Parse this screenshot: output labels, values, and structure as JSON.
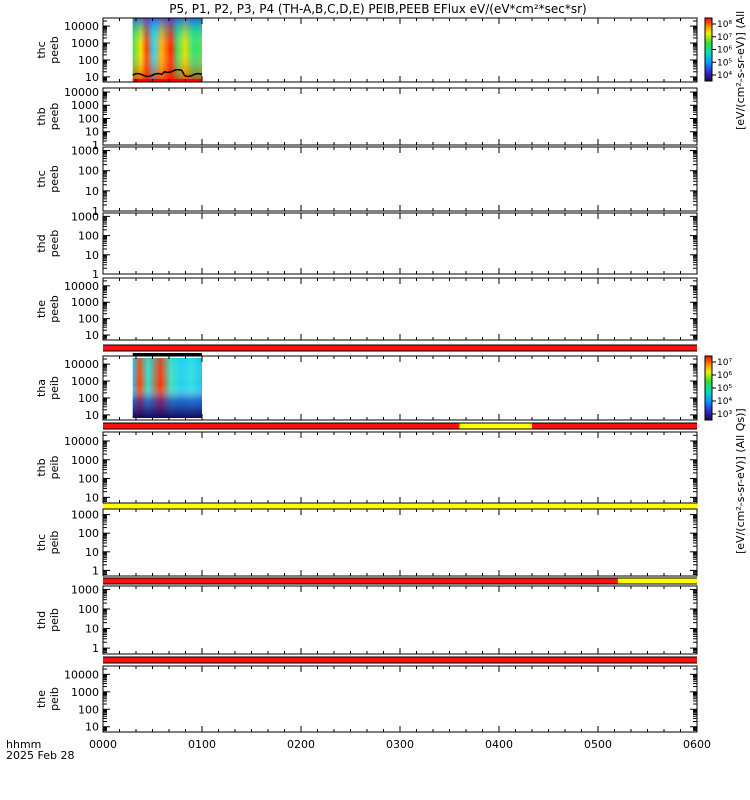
{
  "title": "P5, P1, P2, P3, P4 (TH-A,B,C,D,E) PEIB,PEEB EFlux eV/(eV*cm²*sec*sr)",
  "x_label_line1": "hhmm",
  "x_label_line2": "2025 Feb 28",
  "colorbar_top_label": "[eV/(cm²-s-sr-eV)] (All",
  "colorbar_bottom_label": "[eV/(cm²-s-sr-eV)] (All Qs)]",
  "colors": {
    "flag_red": "#ff1010",
    "flag_yellow": "#ffff00",
    "axis": "#000000",
    "background": "#ffffff"
  },
  "chart_data": {
    "type": "heatmap",
    "x_axis": {
      "range": [
        "0000",
        "0600"
      ],
      "tick_labels": [
        "0000",
        "0100",
        "0200",
        "0300",
        "0400",
        "0500",
        "0600"
      ],
      "scale": "time"
    },
    "panels": [
      {
        "id": "thc-peeb-1",
        "ylabel_1": "thc",
        "ylabel_2": "peeb",
        "yscale": "log",
        "ylim": [
          5,
          30000
        ],
        "tick_labels": [
          "10",
          "100",
          "1000",
          "10000"
        ],
        "data_span": [
          "0018",
          "0100"
        ],
        "has_data": true
      },
      {
        "id": "thb-peeb",
        "ylabel_1": "thb",
        "ylabel_2": "peeb",
        "yscale": "log",
        "ylim": [
          1,
          20000
        ],
        "tick_labels": [
          "1",
          "10",
          "100",
          "1000",
          "10000"
        ],
        "has_data": false
      },
      {
        "id": "thc-peeb-2",
        "ylabel_1": "thc",
        "ylabel_2": "peeb",
        "yscale": "log",
        "ylim": [
          1,
          1500
        ],
        "tick_labels": [
          "1",
          "10",
          "100",
          "1000"
        ],
        "has_data": false
      },
      {
        "id": "thd-peeb",
        "ylabel_1": "thd",
        "ylabel_2": "peeb",
        "yscale": "log",
        "ylim": [
          1,
          1500
        ],
        "tick_labels": [
          "1",
          "10",
          "100",
          "1000"
        ],
        "has_data": false
      },
      {
        "id": "the-peeb",
        "ylabel_1": "the",
        "ylabel_2": "peeb",
        "yscale": "log",
        "ylim": [
          5,
          30000
        ],
        "tick_labels": [
          "10",
          "100",
          "1000",
          "10000"
        ],
        "has_data": false
      },
      {
        "id": "tha-peib",
        "ylabel_1": "tha",
        "ylabel_2": "peib",
        "yscale": "log",
        "ylim": [
          5,
          30000
        ],
        "tick_labels": [
          "10",
          "100",
          "1000",
          "10000"
        ],
        "data_span": [
          "0018",
          "0100"
        ],
        "has_data": true
      },
      {
        "id": "thb-peib",
        "ylabel_1": "thb",
        "ylabel_2": "peib",
        "yscale": "log",
        "ylim": [
          5,
          30000
        ],
        "tick_labels": [
          "10",
          "100",
          "1000",
          "10000"
        ],
        "has_data": false
      },
      {
        "id": "thc-peib",
        "ylabel_1": "thc",
        "ylabel_2": "peib",
        "yscale": "log",
        "ylim": [
          0.5,
          2000
        ],
        "tick_labels": [
          "1",
          "10",
          "100",
          "1000"
        ],
        "has_data": false
      },
      {
        "id": "thd-peib",
        "ylabel_1": "thd",
        "ylabel_2": "peib",
        "yscale": "log",
        "ylim": [
          0.5,
          1500
        ],
        "tick_labels": [
          "1",
          "10",
          "100",
          "1000"
        ],
        "has_data": false
      },
      {
        "id": "the-peib",
        "ylabel_1": "the",
        "ylabel_2": "peib",
        "yscale": "log",
        "ylim": [
          5,
          30000
        ],
        "tick_labels": [
          "10",
          "100",
          "1000",
          "10000"
        ],
        "has_data": false
      }
    ],
    "colorbars": [
      {
        "id": "top",
        "tick_labels": [
          "10⁴",
          "10⁵",
          "10⁶",
          "10⁷",
          "10⁸"
        ]
      },
      {
        "id": "bottom",
        "tick_labels": [
          "10³",
          "10⁴",
          "10⁵",
          "10⁶",
          "10⁷"
        ]
      }
    ],
    "flag_bars": [
      {
        "after_panel": 4,
        "segments": [
          {
            "from": "0000",
            "to": "0600",
            "color": "red"
          }
        ]
      },
      {
        "after_panel": 5,
        "segments": [
          {
            "from": "0000",
            "to": "0336",
            "color": "red"
          },
          {
            "from": "0336",
            "to": "0420",
            "color": "yellow"
          },
          {
            "from": "0420",
            "to": "0600",
            "color": "red"
          }
        ]
      },
      {
        "after_panel": 6,
        "segments": [
          {
            "from": "0000",
            "to": "0600",
            "color": "yellow"
          }
        ]
      },
      {
        "after_panel": 7,
        "segments": [
          {
            "from": "0000",
            "to": "0512",
            "color": "red"
          },
          {
            "from": "0512",
            "to": "0600",
            "color": "yellow"
          }
        ]
      },
      {
        "after_panel": 8,
        "segments": [
          {
            "from": "0000",
            "to": "0600",
            "color": "red"
          }
        ]
      }
    ]
  }
}
